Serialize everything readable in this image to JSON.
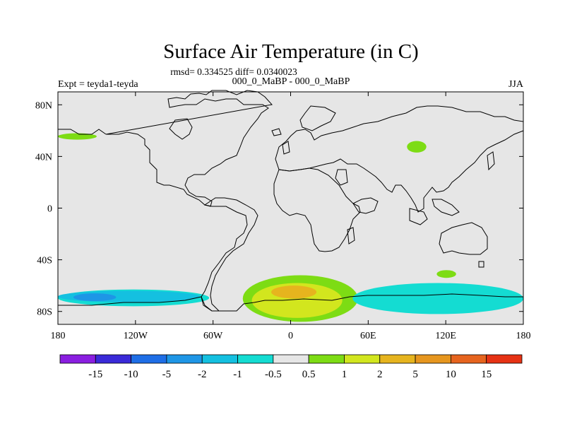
{
  "chart_data": {
    "type": "heatmap",
    "title": "Surface Air Temperature (in C)",
    "stats_line": "rmsd= 0.334525 diff= 0.0340023",
    "experiment": "Expt = teyda1-teyda",
    "comparison": "000_0_MaBP - 000_0_MaBP",
    "season": "JJA",
    "xlim": [
      -180,
      180
    ],
    "ylim": [
      -90,
      90
    ],
    "x_ticks": [
      -180,
      -120,
      -60,
      0,
      60,
      120,
      180
    ],
    "x_tick_labels": [
      "180",
      "120W",
      "60W",
      "0",
      "60E",
      "120E",
      "180"
    ],
    "y_ticks": [
      80,
      40,
      0,
      -40,
      -80
    ],
    "y_tick_labels": [
      "80N",
      "40N",
      "0",
      "40S",
      "80S"
    ],
    "background_color": "#e6e6e6",
    "colorbar": {
      "labels": [
        "-15",
        "-10",
        "-5",
        "-2",
        "-1",
        "-0.5",
        "0.5",
        "1",
        "2",
        "5",
        "10",
        "15"
      ],
      "colors": [
        "#8a1ee0",
        "#3a2ad8",
        "#1e6ee6",
        "#1e96e6",
        "#14c0e0",
        "#14dcd2",
        "#e6e6e6",
        "#7ddc14",
        "#d2e61e",
        "#e6b41e",
        "#e6961e",
        "#e6641e",
        "#e63214"
      ]
    },
    "regions": [
      {
        "name": "antarctic-ocean-band-west",
        "color": "#14dcd2",
        "lon": [
          -180,
          -63
        ],
        "lat": [
          -63,
          -76
        ]
      },
      {
        "name": "antarctic-west-core",
        "color": "#14c0e0",
        "lon": [
          -180,
          -70
        ],
        "lat": [
          -64,
          -73
        ]
      },
      {
        "name": "antarctic-west-deep",
        "color": "#1e96e6",
        "lon": [
          -168,
          -135
        ],
        "lat": [
          -66,
          -72
        ]
      },
      {
        "name": "weddell-positive",
        "color": "#7ddc14",
        "lon": [
          -37,
          52
        ],
        "lat": [
          -52,
          -88
        ]
      },
      {
        "name": "weddell-positive-mid",
        "color": "#d2e61e",
        "lon": [
          -30,
          40
        ],
        "lat": [
          -58,
          -85
        ]
      },
      {
        "name": "weddell-positive-core",
        "color": "#e6b41e",
        "lon": [
          -15,
          20
        ],
        "lat": [
          -60,
          -70
        ]
      },
      {
        "name": "antarctic-ocean-band-east",
        "color": "#14dcd2",
        "lon": [
          48,
          180
        ],
        "lat": [
          -58,
          -82
        ]
      },
      {
        "name": "greenland-sea-positive",
        "color": "#7ddc14",
        "lon": [
          -180,
          -150
        ],
        "lat": [
          58,
          53
        ]
      },
      {
        "name": "barents-positive",
        "color": "#7ddc14",
        "lon": [
          90,
          105
        ],
        "lat": [
          52,
          43
        ]
      },
      {
        "name": "kerguelen-positive",
        "color": "#7ddc14",
        "lon": [
          113,
          128
        ],
        "lat": [
          -48,
          -54
        ]
      }
    ]
  }
}
